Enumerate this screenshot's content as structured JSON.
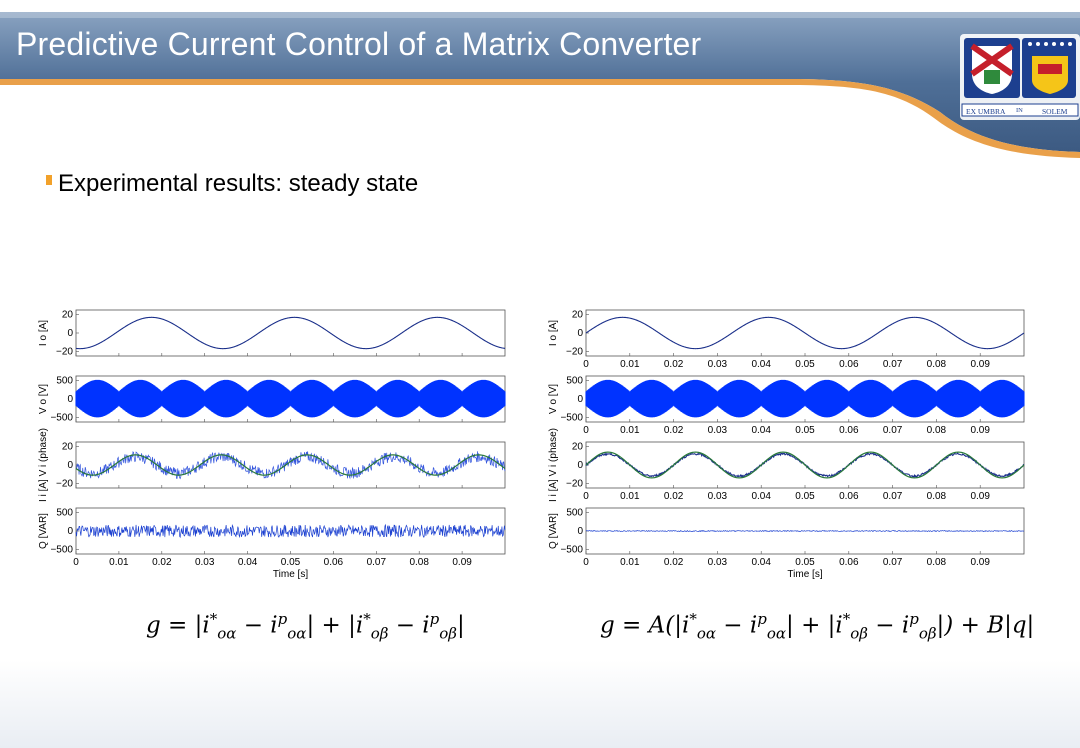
{
  "slide": {
    "title": "Predictive Current Control of a Matrix Converter",
    "bullet": "Experimental results: steady state",
    "logo": {
      "icon": "university-crest-icon",
      "motto_left": "EX UMBRA",
      "motto_mid": "IN",
      "motto_right": "SOLEM"
    },
    "colors": {
      "header_blue": "#4f6f97",
      "accent_orange": "#f2a12a",
      "trace_blue": "#0033ff"
    }
  },
  "formulas": {
    "left": {
      "lhs": "g",
      "text": "= |i*oα − ipoα| + |i*oβ − ipoβ|"
    },
    "right": {
      "lhs": "g",
      "text": "= A(|i*oα − ipoα| + |i*oβ − ipoβ|) + B|q|"
    }
  },
  "chart_data": [
    {
      "type": "line",
      "xlim": [
        0,
        0.1
      ],
      "xticks": [
        "0",
        "0.01",
        "0.02",
        "0.03",
        "0.04",
        "0.05",
        "0.06",
        "0.07",
        "0.08",
        "0.09"
      ],
      "xlabel": "Time [s]",
      "subplots": [
        {
          "ylabel": "I o [A]",
          "yticks": [
            "20",
            "0",
            "−20"
          ],
          "ylim": [
            -25,
            25
          ],
          "series": [
            {
              "kind": "sine",
              "amplitude": 17,
              "frequency_hz": 30,
              "phase_deg": -100,
              "noise": 0,
              "ref": false
            }
          ]
        },
        {
          "ylabel": "V o [V]",
          "yticks": [
            "500",
            "0",
            "−500"
          ],
          "ylim": [
            -600,
            600
          ],
          "series": [
            {
              "kind": "pwm",
              "amplitude": 300,
              "frequency_hz": 50
            }
          ]
        },
        {
          "ylabel": "I i [A]  V i (phase)",
          "yticks": [
            "20",
            "0",
            "−20"
          ],
          "ylim": [
            -25,
            25
          ],
          "series": [
            {
              "kind": "sine",
              "amplitude": 9,
              "frequency_hz": 50,
              "phase_deg": 200,
              "noise": 6,
              "ref": true
            }
          ]
        },
        {
          "ylabel": "Q [VAR]",
          "yticks": [
            "500",
            "0",
            "−500"
          ],
          "ylim": [
            -600,
            600
          ],
          "series": [
            {
              "kind": "noise",
              "amplitude": 160
            }
          ]
        }
      ]
    },
    {
      "type": "line",
      "xlim": [
        0,
        0.1
      ],
      "xticks": [
        "0",
        "0.01",
        "0.02",
        "0.03",
        "0.04",
        "0.05",
        "0.06",
        "0.07",
        "0.08",
        "0.09"
      ],
      "xlabel": "Time [s]",
      "subplots": [
        {
          "ylabel": "I o [A]",
          "yticks": [
            "20",
            "0",
            "−20"
          ],
          "ylim": [
            -25,
            25
          ],
          "series": [
            {
              "kind": "sine",
              "amplitude": 17,
              "frequency_hz": 30,
              "phase_deg": 0,
              "noise": 0,
              "ref": false
            }
          ]
        },
        {
          "ylabel": "V o [V]",
          "yticks": [
            "500",
            "0",
            "−500"
          ],
          "ylim": [
            -600,
            600
          ],
          "series": [
            {
              "kind": "pwm",
              "amplitude": 300,
              "frequency_hz": 50
            }
          ]
        },
        {
          "ylabel": "I i [A]  V i (phase)",
          "yticks": [
            "20",
            "0",
            "−20"
          ],
          "ylim": [
            -25,
            25
          ],
          "series": [
            {
              "kind": "sine",
              "amplitude": 12,
              "frequency_hz": 50,
              "phase_deg": 0,
              "noise": 1,
              "ref": true
            }
          ]
        },
        {
          "ylabel": "Q [VAR]",
          "yticks": [
            "500",
            "0",
            "−500"
          ],
          "ylim": [
            -600,
            600
          ],
          "series": [
            {
              "kind": "noise",
              "amplitude": 12
            }
          ]
        }
      ]
    }
  ]
}
